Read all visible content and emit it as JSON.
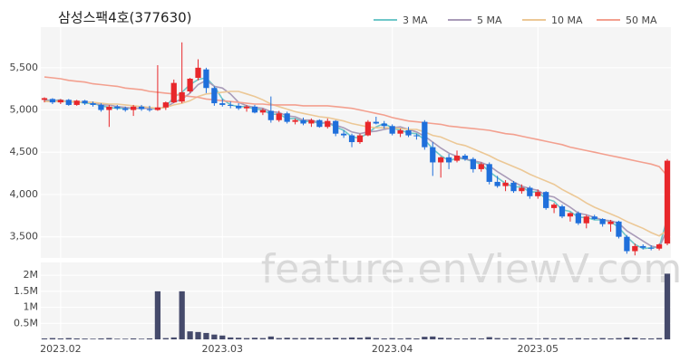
{
  "chart_data": {
    "type": "candlestick",
    "title": "삼성스팩4호(377630)",
    "watermark": "feature.enViewV.com",
    "legend_position": "top-right",
    "grid": true,
    "up_color": "#e8272b",
    "down_color": "#1f6fdb",
    "volume_color": "#454a6b",
    "ylim": [
      3250,
      5980
    ],
    "yticks": [
      {
        "value": 3500,
        "label": "3,500"
      },
      {
        "value": 4000,
        "label": "4,000"
      },
      {
        "value": 4500,
        "label": "4,500"
      },
      {
        "value": 5000,
        "label": "5,000"
      },
      {
        "value": 5500,
        "label": "5,500"
      }
    ],
    "volume_ylim": [
      0,
      2400000
    ],
    "volume_yticks": [
      {
        "value": 500000,
        "label": "0.5M"
      },
      {
        "value": 1000000,
        "label": "1M"
      },
      {
        "value": 1500000,
        "label": "1.5M"
      },
      {
        "value": 2000000,
        "label": "2M"
      }
    ],
    "xticks": [
      {
        "value": 2,
        "label": "2023.02"
      },
      {
        "value": 22,
        "label": "2023.03"
      },
      {
        "value": 43,
        "label": "2023.04"
      },
      {
        "value": 61,
        "label": "2023.05"
      }
    ],
    "open": [
      5120,
      5130,
      5090,
      5120,
      5060,
      5110,
      5080,
      5060,
      5000,
      5040,
      5020,
      5000,
      5040,
      5010,
      5000,
      5030,
      5090,
      5100,
      5220,
      5380,
      5480,
      5260,
      5080,
      5060,
      5050,
      5020,
      5040,
      4970,
      4990,
      4880,
      4960,
      4860,
      4880,
      4840,
      4880,
      4800,
      4870,
      4720,
      4700,
      4620,
      4700,
      4860,
      4840,
      4810,
      4720,
      4760,
      4700,
      4860,
      4560,
      4380,
      4440,
      4400,
      4460,
      4420,
      4300,
      4360,
      4150,
      4100,
      4140,
      4040,
      4080,
      3980,
      4030,
      3840,
      3860,
      3740,
      3780,
      3660,
      3740,
      3710,
      3650,
      3680,
      3500,
      3330,
      3390,
      3370,
      3360,
      3420
    ],
    "high": [
      5150,
      5140,
      5130,
      5130,
      5120,
      5120,
      5100,
      5080,
      5060,
      5060,
      5040,
      5060,
      5060,
      5050,
      5530,
      5100,
      5360,
      5800,
      5380,
      5600,
      5500,
      5280,
      5130,
      5100,
      5080,
      5060,
      5060,
      5020,
      5160,
      4990,
      4980,
      4900,
      4910,
      4900,
      4890,
      4900,
      4880,
      4760,
      4720,
      4720,
      4880,
      4920,
      4870,
      4830,
      4780,
      4800,
      4720,
      4880,
      4620,
      4450,
      4480,
      4520,
      4480,
      4440,
      4380,
      4380,
      4220,
      4170,
      4160,
      4120,
      4100,
      4060,
      4040,
      3900,
      3880,
      3790,
      3800,
      3760,
      3760,
      3720,
      3700,
      3690,
      3520,
      3420,
      3410,
      3400,
      3420,
      4420
    ],
    "low": [
      5090,
      5070,
      5070,
      5050,
      5050,
      5060,
      5040,
      4980,
      4800,
      5000,
      4980,
      4930,
      4990,
      4980,
      4990,
      5000,
      5080,
      5080,
      5200,
      5350,
      5200,
      5050,
      5040,
      5020,
      5000,
      4980,
      4960,
      4940,
      4850,
      4860,
      4840,
      4830,
      4820,
      4800,
      4790,
      4780,
      4690,
      4670,
      4560,
      4600,
      4690,
      4830,
      4780,
      4700,
      4680,
      4680,
      4650,
      4530,
      4220,
      4200,
      4300,
      4380,
      4400,
      4260,
      4270,
      4120,
      4080,
      4040,
      4020,
      4010,
      3950,
      3950,
      3820,
      3780,
      3720,
      3680,
      3640,
      3600,
      3700,
      3620,
      3560,
      3480,
      3300,
      3280,
      3350,
      3340,
      3340,
      3400
    ],
    "close": [
      5140,
      5090,
      5120,
      5060,
      5110,
      5080,
      5060,
      5000,
      5040,
      5020,
      5000,
      5040,
      5010,
      5000,
      5030,
      5090,
      5320,
      5210,
      5370,
      5500,
      5260,
      5080,
      5060,
      5050,
      5020,
      5040,
      4970,
      5000,
      4880,
      4960,
      4860,
      4880,
      4840,
      4880,
      4800,
      4870,
      4720,
      4700,
      4620,
      4700,
      4860,
      4840,
      4810,
      4720,
      4760,
      4700,
      4690,
      4560,
      4380,
      4440,
      4380,
      4460,
      4420,
      4300,
      4360,
      4150,
      4100,
      4140,
      4040,
      4080,
      3980,
      4030,
      3840,
      3880,
      3740,
      3780,
      3660,
      3740,
      3710,
      3650,
      3680,
      3500,
      3330,
      3390,
      3370,
      3360,
      3410,
      4400
    ],
    "volume": [
      30000,
      40000,
      30000,
      40000,
      30000,
      25000,
      20000,
      30000,
      40000,
      20000,
      20000,
      30000,
      20000,
      30000,
      1500000,
      40000,
      60000,
      1500000,
      250000,
      230000,
      200000,
      150000,
      120000,
      60000,
      50000,
      40000,
      50000,
      40000,
      90000,
      40000,
      50000,
      40000,
      40000,
      50000,
      40000,
      40000,
      50000,
      40000,
      60000,
      50000,
      70000,
      40000,
      30000,
      40000,
      30000,
      40000,
      30000,
      80000,
      90000,
      50000,
      40000,
      30000,
      30000,
      40000,
      30000,
      70000,
      40000,
      30000,
      40000,
      30000,
      40000,
      30000,
      40000,
      30000,
      40000,
      30000,
      40000,
      30000,
      30000,
      40000,
      30000,
      40000,
      60000,
      50000,
      30000,
      30000,
      40000,
      2050000
    ],
    "moving_averages": [
      {
        "name": "3 MA",
        "color": "#6fc7c9",
        "values": [
          5120,
          5110,
          5120,
          5090,
          5100,
          5080,
          5080,
          5050,
          5030,
          5020,
          5020,
          5020,
          5020,
          5020,
          5010,
          5040,
          5150,
          5210,
          5300,
          5360,
          5380,
          5280,
          5130,
          5060,
          5040,
          5040,
          5010,
          5000,
          4950,
          4950,
          4900,
          4900,
          4860,
          4870,
          4840,
          4850,
          4800,
          4760,
          4680,
          4670,
          4730,
          4800,
          4840,
          4790,
          4760,
          4730,
          4720,
          4650,
          4540,
          4460,
          4400,
          4430,
          4420,
          4390,
          4360,
          4270,
          4200,
          4130,
          4090,
          4090,
          4030,
          4030,
          3950,
          3920,
          3820,
          3800,
          3730,
          3730,
          3700,
          3700,
          3680,
          3610,
          3500,
          3410,
          3360,
          3370,
          3380,
          3720
        ]
      },
      {
        "name": "5 MA",
        "color": "#a99bb8",
        "values": [
          5110,
          5110,
          5110,
          5100,
          5100,
          5090,
          5090,
          5060,
          5060,
          5040,
          5030,
          5020,
          5020,
          5020,
          5020,
          5030,
          5090,
          5130,
          5200,
          5300,
          5350,
          5280,
          5260,
          5190,
          5090,
          5050,
          5030,
          5020,
          4980,
          4970,
          4930,
          4920,
          4880,
          4880,
          4850,
          4850,
          4820,
          4790,
          4740,
          4720,
          4740,
          4750,
          4770,
          4790,
          4800,
          4770,
          4740,
          4690,
          4620,
          4550,
          4490,
          4450,
          4420,
          4400,
          4380,
          4340,
          4270,
          4210,
          4150,
          4100,
          4070,
          4050,
          3990,
          3970,
          3910,
          3850,
          3780,
          3760,
          3730,
          3700,
          3690,
          3660,
          3570,
          3510,
          3450,
          3390,
          3370,
          3590
        ]
      },
      {
        "name": "10 MA",
        "color": "#ecc896",
        "values": [
          5100,
          5100,
          5100,
          5100,
          5100,
          5090,
          5090,
          5080,
          5070,
          5070,
          5060,
          5050,
          5040,
          5030,
          5020,
          5030,
          5060,
          5080,
          5110,
          5160,
          5190,
          5200,
          5210,
          5220,
          5220,
          5190,
          5160,
          5120,
          5070,
          5040,
          5010,
          4980,
          4960,
          4940,
          4920,
          4910,
          4890,
          4870,
          4840,
          4820,
          4800,
          4790,
          4790,
          4790,
          4780,
          4770,
          4770,
          4740,
          4700,
          4680,
          4640,
          4600,
          4580,
          4540,
          4500,
          4460,
          4410,
          4370,
          4330,
          4290,
          4240,
          4200,
          4160,
          4120,
          4060,
          4010,
          3960,
          3900,
          3850,
          3810,
          3770,
          3730,
          3680,
          3640,
          3600,
          3550,
          3510,
          3580
        ]
      },
      {
        "name": "50 MA",
        "color": "#f3a08f",
        "values": [
          5390,
          5380,
          5370,
          5350,
          5340,
          5330,
          5310,
          5300,
          5290,
          5280,
          5260,
          5250,
          5240,
          5220,
          5210,
          5200,
          5190,
          5170,
          5160,
          5150,
          5130,
          5120,
          5110,
          5100,
          5090,
          5080,
          5070,
          5070,
          5060,
          5060,
          5060,
          5060,
          5050,
          5050,
          5050,
          5050,
          5040,
          5030,
          5020,
          5000,
          4980,
          4960,
          4940,
          4910,
          4890,
          4870,
          4860,
          4850,
          4840,
          4830,
          4810,
          4800,
          4790,
          4780,
          4770,
          4760,
          4740,
          4720,
          4710,
          4690,
          4670,
          4650,
          4630,
          4610,
          4590,
          4560,
          4540,
          4520,
          4500,
          4480,
          4460,
          4440,
          4420,
          4400,
          4380,
          4360,
          4330,
          4220
        ]
      }
    ]
  }
}
